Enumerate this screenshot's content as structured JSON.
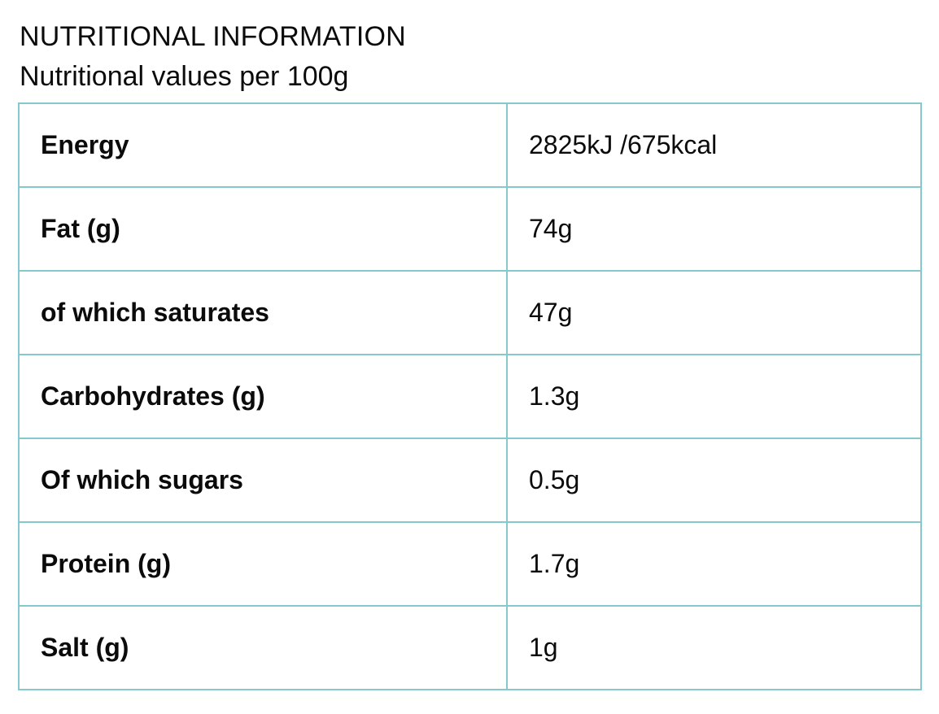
{
  "page": {
    "title": "NUTRITIONAL INFORMATION",
    "subtitle": "Nutritional values per 100g"
  },
  "table": {
    "border_color": "#85c9cd",
    "text_color": "#0b0b0b",
    "rows": [
      {
        "label": "Energy",
        "value": "2825kJ /675kcal"
      },
      {
        "label": "Fat (g)",
        "value": "74g"
      },
      {
        "label": "of which saturates",
        "value": "47g"
      },
      {
        "label": "Carbohydrates (g)",
        "value": "1.3g"
      },
      {
        "label": "Of which sugars",
        "value": "0.5g"
      },
      {
        "label": "Protein (g)",
        "value": "1.7g"
      },
      {
        "label": "Salt (g)",
        "value": "1g"
      }
    ]
  }
}
